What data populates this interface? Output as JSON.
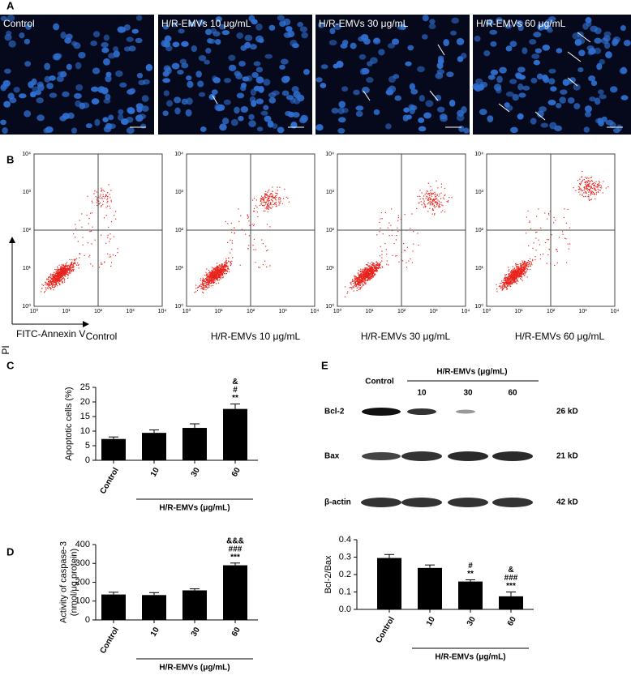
{
  "figure": {
    "panel_a": {
      "letter": "A",
      "captions": [
        "Control",
        "H/R-EMVs 10 μg/mL",
        "H/R-EMVs 30 μg/mL",
        "H/R-EMVs 60 μg/mL"
      ]
    },
    "panel_b": {
      "letter": "B",
      "y_axis": "PI",
      "x_axis": "FITC-Annexin V",
      "ticks": [
        "10⁰",
        "10¹",
        "10²",
        "10³",
        "10⁴"
      ],
      "captions": [
        "Control",
        "H/R-EMVs 10 μg/mL",
        "H/R-EMVs 30 μg/mL",
        "H/R-EMVs 60 μg/mL"
      ]
    },
    "panel_e_blot": {
      "letter": "E",
      "control": "Control",
      "group": "H/R-EMVs (μg/mL)",
      "doses": [
        "10",
        "30",
        "60"
      ],
      "rows": [
        {
          "name": "Bcl-2",
          "size": "26 kD"
        },
        {
          "name": "Bax",
          "size": "21 kD"
        },
        {
          "name": "β-actin",
          "size": "42 kD"
        }
      ]
    }
  },
  "chart_data": [
    {
      "type": "bar",
      "letter": "C",
      "ylabel": [
        "Apoptotic cells (%)"
      ],
      "categories": [
        "Control",
        "10",
        "30",
        "60"
      ],
      "group_label": "H/R-EMVs (μg/mL)",
      "values": [
        7.3,
        9.4,
        11.1,
        17.6
      ],
      "errors": [
        0.7,
        1.0,
        1.4,
        1.7
      ],
      "annotations": [
        null,
        null,
        null,
        [
          "&",
          "#",
          "**"
        ]
      ],
      "color": "#000000",
      "ylim": [
        0,
        25
      ],
      "yticks": [
        0,
        5,
        10,
        15,
        20,
        25
      ]
    },
    {
      "type": "bar",
      "letter": "D",
      "ylabel": [
        "Activity of caspase-3",
        "(nmol/μg protein)"
      ],
      "categories": [
        "Control",
        "10",
        "30",
        "60"
      ],
      "group_label": "H/R-EMVs (μg/mL)",
      "values": [
        135,
        132,
        157,
        290
      ],
      "errors": [
        12,
        13,
        8,
        12
      ],
      "annotations": [
        null,
        null,
        null,
        [
          "&&&",
          "###",
          "***"
        ]
      ],
      "color": "#000000",
      "ylim": [
        0,
        400
      ],
      "yticks": [
        0,
        100,
        200,
        300,
        400
      ]
    },
    {
      "type": "bar",
      "ylabel": [
        "Bcl-2/Bax"
      ],
      "categories": [
        "Control",
        "10",
        "30",
        "60"
      ],
      "group_label": "H/R-EMVs (μg/mL)",
      "values": [
        0.295,
        0.238,
        0.16,
        0.075
      ],
      "errors": [
        0.02,
        0.017,
        0.01,
        0.025
      ],
      "annotations": [
        null,
        null,
        [
          "#",
          "**"
        ],
        [
          "&",
          "###",
          "***"
        ]
      ],
      "color": "#000000",
      "ylim": [
        0,
        0.4
      ],
      "yticks": [
        {
          "value": 0,
          "label": "0.0"
        },
        0.1,
        0.2,
        0.3,
        0.4
      ]
    }
  ]
}
